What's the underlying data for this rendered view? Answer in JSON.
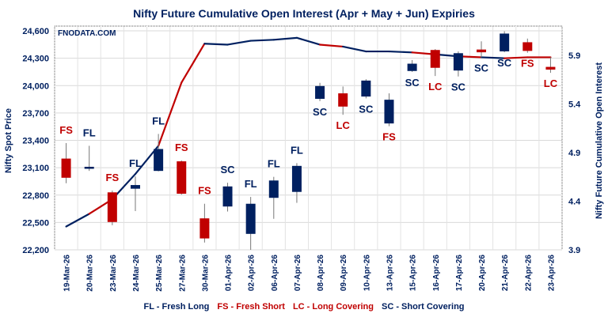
{
  "chart_data": {
    "type": "candlestick+line",
    "title": "Nifty Future Cumulative Open Interest (Apr + May + Jun) Expiries",
    "watermark": "FNODATA.COM",
    "ylabel": "Nifty Spot Price",
    "y2label": "Nifty Future Cumulative Open Interest",
    "ylim": [
      22200,
      24600
    ],
    "yticks": [
      "22,200",
      "22,500",
      "22,800",
      "23,100",
      "23,400",
      "23,700",
      "24,000",
      "24,300",
      "24,600"
    ],
    "y2lim": [
      3.9,
      6.15
    ],
    "y2ticks": [
      "3.9",
      "4.4",
      "4.9",
      "5.4",
      "5.9"
    ],
    "grid": true,
    "categories": [
      "19-Mar-26",
      "20-Mar-26",
      "23-Mar-26",
      "24-Mar-26",
      "25-Mar-26",
      "27-Mar-26",
      "30-Mar-26",
      "01-Apr-26",
      "02-Apr-26",
      "06-Apr-26",
      "07-Apr-26",
      "08-Apr-26",
      "09-Apr-26",
      "10-Apr-26",
      "13-Apr-26",
      "15-Apr-26",
      "16-Apr-26",
      "17-Apr-26",
      "20-Apr-26",
      "21-Apr-26",
      "22-Apr-26",
      "23-Apr-26"
    ],
    "candles": [
      {
        "o": 23200,
        "h": 23370,
        "l": 22930,
        "c": 22990,
        "label": "FS"
      },
      {
        "o": 23100,
        "h": 23340,
        "l": 23065,
        "c": 23110,
        "label": "FL"
      },
      {
        "o": 22830,
        "h": 22850,
        "l": 22470,
        "c": 22505,
        "label": "FS"
      },
      {
        "o": 22870,
        "h": 23005,
        "l": 22625,
        "c": 22910,
        "label": "FL"
      },
      {
        "o": 23065,
        "h": 23470,
        "l": 23060,
        "c": 23305,
        "label": "FL"
      },
      {
        "o": 23170,
        "h": 23180,
        "l": 22805,
        "c": 22815,
        "label": "FS"
      },
      {
        "o": 22545,
        "h": 22705,
        "l": 22280,
        "c": 22325,
        "label": "FS"
      },
      {
        "o": 22675,
        "h": 22935,
        "l": 22620,
        "c": 22895,
        "label": "SC"
      },
      {
        "o": 22375,
        "h": 22780,
        "l": 22200,
        "c": 22705,
        "label": "FL"
      },
      {
        "o": 22770,
        "h": 23000,
        "l": 22540,
        "c": 22960,
        "label": "FL"
      },
      {
        "o": 22835,
        "h": 23150,
        "l": 22715,
        "c": 23120,
        "label": "FL"
      },
      {
        "o": 23855,
        "h": 24030,
        "l": 23830,
        "c": 23995,
        "label": "SC"
      },
      {
        "o": 23915,
        "h": 23990,
        "l": 23680,
        "c": 23770,
        "label": "LC"
      },
      {
        "o": 23880,
        "h": 24070,
        "l": 23860,
        "c": 24055,
        "label": "SC"
      },
      {
        "o": 23585,
        "h": 23915,
        "l": 23555,
        "c": 23845,
        "label": "FS"
      },
      {
        "o": 24160,
        "h": 24280,
        "l": 24150,
        "c": 24240,
        "label": "SC"
      },
      {
        "o": 24390,
        "h": 24400,
        "l": 24105,
        "c": 24195,
        "label": "LC"
      },
      {
        "o": 24165,
        "h": 24375,
        "l": 24100,
        "c": 24355,
        "label": "SC"
      },
      {
        "o": 24395,
        "h": 24485,
        "l": 24310,
        "c": 24365,
        "label": "SC"
      },
      {
        "o": 24375,
        "h": 24595,
        "l": 24365,
        "c": 24570,
        "label": "SC"
      },
      {
        "o": 24475,
        "h": 24515,
        "l": 24360,
        "c": 24380,
        "label": "FS"
      },
      {
        "o": 24205,
        "h": 24310,
        "l": 24140,
        "c": 24175,
        "label": "LC"
      }
    ],
    "open_interest": [
      4.14,
      4.27,
      4.42,
      4.68,
      4.97,
      5.62,
      6.02,
      6.01,
      6.05,
      6.06,
      6.08,
      6.01,
      5.99,
      5.94,
      5.94,
      5.93,
      5.91,
      5.89,
      5.88,
      5.87,
      5.88,
      5.88
    ],
    "colors": {
      "up": "#002060",
      "down": "#c00000",
      "FL": "#002060",
      "SC": "#002060",
      "FS": "#c00000",
      "LC": "#c00000"
    },
    "legend": [
      {
        "text": "FL - Fresh Long",
        "color": "#002060"
      },
      {
        "text": "FS - Fresh Short",
        "color": "#c00000"
      },
      {
        "text": "LC - Long Covering",
        "color": "#c00000"
      },
      {
        "text": "SC - Short Covering",
        "color": "#002060"
      }
    ],
    "legend_position": "bottom"
  }
}
